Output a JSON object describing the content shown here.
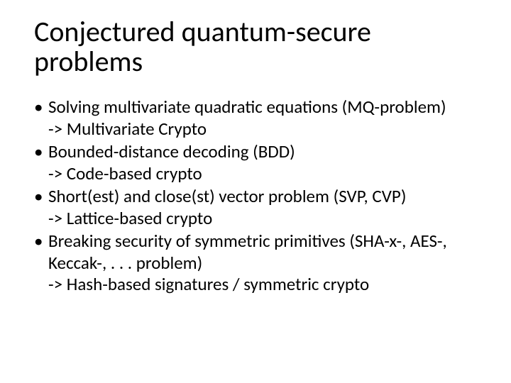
{
  "title_fontsize": 40,
  "body_fontsize": 25,
  "text_color": "#000000",
  "background_color": "#ffffff",
  "title": "Conjectured quantum-secure problems",
  "bullets": [
    {
      "line1": "Solving multivariate quadratic equations (MQ-problem)",
      "line2": "-> Multivariate Crypto"
    },
    {
      "line1": "Bounded-distance decoding (BDD)",
      "line2": "-> Code-based crypto"
    },
    {
      "line1": "Short(est) and close(st) vector problem (SVP, CVP)",
      "line2": "-> Lattice-based crypto"
    },
    {
      "line1": "Breaking security of symmetric primitives (SHA-x-, AES-, Keccak-, . . . problem)",
      "line2": "-> Hash-based signatures / symmetric crypto"
    }
  ]
}
